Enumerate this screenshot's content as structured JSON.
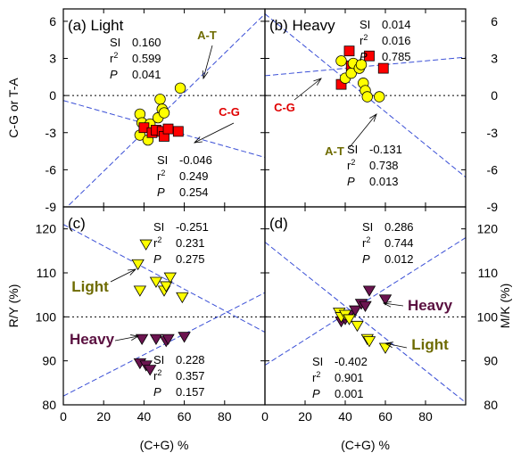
{
  "chart_data": [
    {
      "panel": "a",
      "type": "scatter",
      "title": "(a) Light",
      "ylabel": "C-G  or  T-A",
      "xlim": [
        0,
        100
      ],
      "ylim": [
        -9,
        7
      ],
      "yticks_left": [
        -9,
        -6,
        -3,
        0,
        3,
        6
      ],
      "zero_line": true,
      "series": [
        {
          "name": "A-T",
          "marker": "circle",
          "color": "#ffff00",
          "x": [
            38,
            38,
            39,
            42,
            43,
            47,
            48,
            49,
            50,
            58
          ],
          "y": [
            -3.2,
            -1.5,
            -2.2,
            -3.6,
            -2.3,
            -1.8,
            -0.3,
            -1.1,
            -1.4,
            0.6
          ]
        },
        {
          "name": "C-G",
          "marker": "square",
          "color": "#ff0000",
          "x": [
            40,
            44,
            46,
            49,
            50,
            52,
            57
          ],
          "y": [
            -2.6,
            -3.0,
            -2.8,
            -2.9,
            -3.3,
            -2.7,
            -2.9
          ]
        }
      ],
      "fits": [
        {
          "x": [
            0,
            100
          ],
          "y": [
            -9.3,
            6.6
          ]
        },
        {
          "x": [
            0,
            100
          ],
          "y": [
            -0.4,
            -5.0
          ]
        }
      ],
      "stat_blocks": [
        {
          "SI": "0.160",
          "r2": "0.599",
          "P": "0.041"
        },
        {
          "SI": "-0.046",
          "r2": "0.249",
          "P": "0.254"
        }
      ],
      "annotations": [
        "A-T",
        "C-G"
      ]
    },
    {
      "panel": "b",
      "type": "scatter",
      "title": "(b) Heavy",
      "xlim": [
        0,
        100
      ],
      "ylim": [
        -9,
        7
      ],
      "yticks_right": [
        -9,
        -6,
        -3,
        0,
        3,
        6
      ],
      "zero_line": true,
      "series": [
        {
          "name": "C-G",
          "marker": "square",
          "color": "#ff0000",
          "x": [
            38,
            42,
            43,
            52,
            59
          ],
          "y": [
            0.9,
            3.6,
            2.4,
            3.2,
            2.2
          ]
        },
        {
          "name": "A-T",
          "marker": "circle",
          "color": "#ffff00",
          "x": [
            38,
            40,
            43,
            44,
            47,
            48,
            49,
            50,
            51,
            57
          ],
          "y": [
            2.8,
            1.4,
            1.8,
            2.6,
            2.2,
            2.5,
            1.0,
            0.4,
            -0.1,
            -0.1
          ]
        }
      ],
      "fits": [
        {
          "x": [
            0,
            100
          ],
          "y": [
            1.6,
            3.1
          ]
        },
        {
          "x": [
            0,
            100
          ],
          "y": [
            6.6,
            -6.6
          ]
        }
      ],
      "stat_blocks": [
        {
          "SI": "0.014",
          "r2": "0.016",
          "P": "0.785"
        },
        {
          "SI": "-0.131",
          "r2": "0.738",
          "P": "0.013"
        }
      ],
      "annotations": [
        "C-G",
        "A-T"
      ]
    },
    {
      "panel": "c",
      "type": "scatter",
      "title": "(c)",
      "xlabel": "(C+G) %",
      "ylabel": "R/Y (%)",
      "xlim": [
        0,
        100
      ],
      "ylim": [
        80,
        125
      ],
      "xticks": [
        0,
        20,
        40,
        60,
        80
      ],
      "yticks_left": [
        80,
        90,
        100,
        110,
        120
      ],
      "zero_line_y": 100,
      "series": [
        {
          "name": "Light",
          "marker": "triangle-down",
          "color": "#ffff00",
          "x": [
            37,
            38,
            41,
            46,
            50,
            51,
            53,
            59
          ],
          "y": [
            112,
            106,
            116.5,
            108,
            106,
            107,
            109,
            104.5
          ]
        },
        {
          "name": "Heavy",
          "marker": "triangle-down",
          "color": "#6b1450",
          "x": [
            38,
            39,
            41,
            43,
            46,
            51,
            52,
            60
          ],
          "y": [
            89.5,
            95,
            89,
            88,
            95,
            94.5,
            95,
            95.5
          ]
        }
      ],
      "fits": [
        {
          "x": [
            0,
            100
          ],
          "y": [
            121,
            96.5
          ]
        },
        {
          "x": [
            0,
            100
          ],
          "y": [
            82,
            105.5
          ]
        }
      ],
      "stat_blocks": [
        {
          "SI": "-0.251",
          "r2": "0.231",
          "P": "0.275"
        },
        {
          "SI": "0.228",
          "r2": "0.357",
          "P": "0.157"
        }
      ],
      "annotations": [
        "Light",
        "Heavy"
      ]
    },
    {
      "panel": "d",
      "type": "scatter",
      "title": "(d)",
      "xlabel": "(C+G) %",
      "ylabel": "M/K  (%)",
      "xlim": [
        0,
        100
      ],
      "ylim": [
        80,
        125
      ],
      "xticks": [
        0,
        20,
        40,
        60,
        80
      ],
      "yticks_right": [
        80,
        90,
        100,
        110,
        120
      ],
      "zero_line_y": 100,
      "series": [
        {
          "name": "Heavy",
          "marker": "triangle-down",
          "color": "#6b1450",
          "x": [
            38,
            40,
            42,
            45,
            48,
            50,
            52,
            60
          ],
          "y": [
            99,
            99.5,
            100.5,
            101.5,
            103,
            102.5,
            106,
            104
          ]
        },
        {
          "name": "Light",
          "marker": "triangle-down",
          "color": "#ffff00",
          "x": [
            37,
            38,
            40,
            42,
            46,
            51,
            52,
            60
          ],
          "y": [
            101,
            100,
            100.5,
            99.5,
            98,
            95,
            94.5,
            93
          ]
        }
      ],
      "fits": [
        {
          "x": [
            0,
            100
          ],
          "y": [
            89,
            118
          ]
        },
        {
          "x": [
            0,
            100
          ],
          "y": [
            117,
            80.5
          ]
        }
      ],
      "stat_blocks": [
        {
          "SI": "0.286",
          "r2": "0.744",
          "P": "0.012"
        },
        {
          "SI": "-0.402",
          "r2": "0.901",
          "P": "0.001"
        }
      ],
      "annotations": [
        "Heavy",
        "Light"
      ]
    }
  ],
  "colors": {
    "ytext": "#6e6b00",
    "red_label": "#e00000",
    "heavy_label": "#5a1040",
    "light_label": "#6e6b00",
    "fit": "#3a4fd6"
  }
}
